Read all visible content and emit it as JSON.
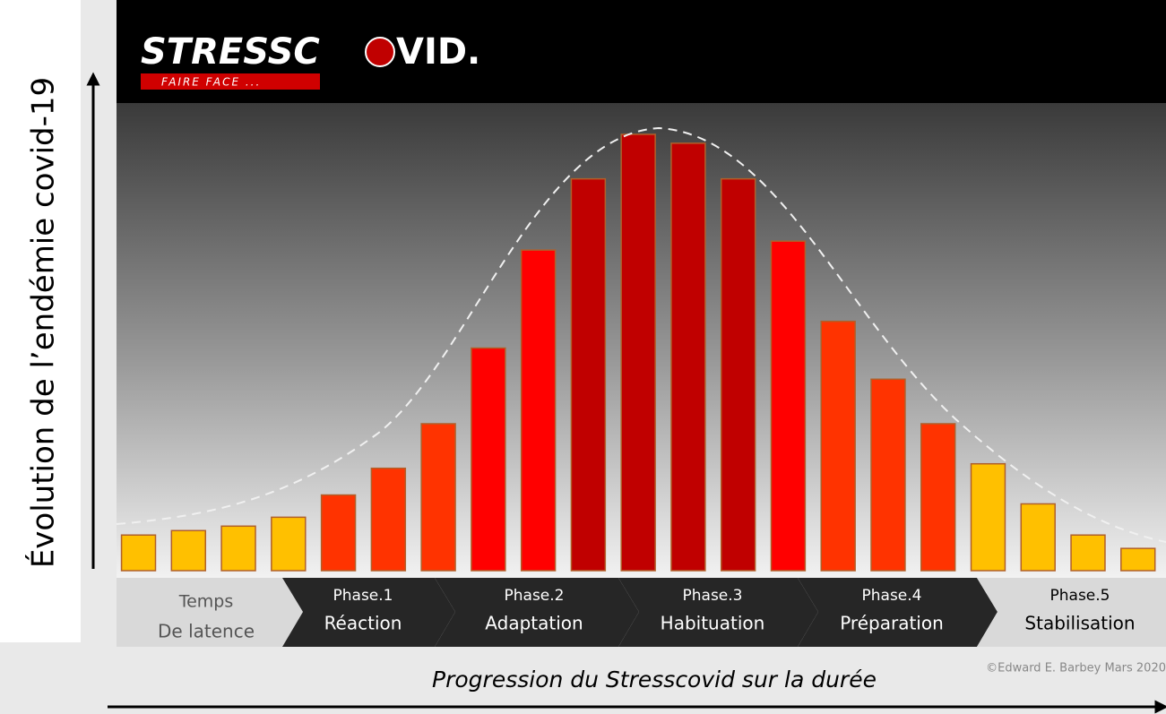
{
  "chart_data": {
    "type": "bar",
    "logo": {
      "left": "STRESSC",
      "right": "VID.",
      "tagline": "FAIRE FACE ..."
    },
    "ylabel": "Évolution de l’endémie covid-19",
    "xlabel": "Progression du Stresscovid sur la durée",
    "credit": "©Edward E. Barbey Mars 2020",
    "phases": [
      [
        "Temps",
        "De latence"
      ],
      [
        "Phase.1",
        "Réaction"
      ],
      [
        "Phase.2",
        "Adaptation"
      ],
      [
        "Phase.3",
        "Habituation"
      ],
      [
        "Phase.4",
        "Préparation"
      ],
      [
        "Phase.5",
        "Stabilisation"
      ]
    ],
    "values": [
      8,
      9,
      10,
      12,
      17,
      23,
      33,
      50,
      72,
      88,
      98,
      96,
      88,
      74,
      56,
      43,
      33,
      24,
      15,
      8,
      5
    ],
    "colors": [
      "#ffc000",
      "#ffc000",
      "#ffc000",
      "#ffc000",
      "#ff3300",
      "#ff3300",
      "#ff3300",
      "#ff0000",
      "#ff0000",
      "#c00000",
      "#c00000",
      "#c00000",
      "#c00000",
      "#ff0000",
      "#ff3300",
      "#ff3300",
      "#ff3300",
      "#ffc000",
      "#ffc000",
      "#ffc000",
      "#ffc000"
    ],
    "ylim": [
      0,
      100
    ]
  }
}
